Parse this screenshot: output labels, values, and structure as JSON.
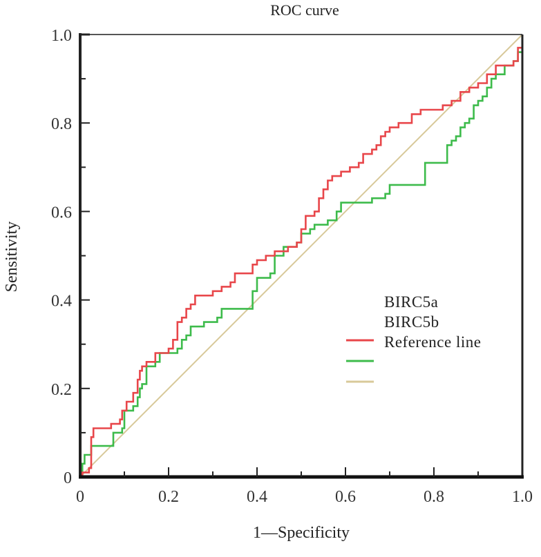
{
  "chart_data": {
    "type": "line",
    "title": "ROC curve",
    "xlabel": "1—Specificity",
    "ylabel": "Sensitivity",
    "xlim": [
      0,
      1
    ],
    "ylim": [
      0,
      1
    ],
    "grid": false,
    "x_ticks": [
      {
        "value": 0,
        "label": "0"
      },
      {
        "value": 0.2,
        "label": "0.2"
      },
      {
        "value": 0.4,
        "label": "0.4"
      },
      {
        "value": 0.6,
        "label": "0.6"
      },
      {
        "value": 0.8,
        "label": "0.8"
      },
      {
        "value": 1.0,
        "label": "1.0"
      }
    ],
    "y_ticks": [
      {
        "value": 0,
        "label": "0"
      },
      {
        "value": 0.2,
        "label": "0.2"
      },
      {
        "value": 0.4,
        "label": "0.4"
      },
      {
        "value": 0.6,
        "label": "0.6"
      },
      {
        "value": 0.8,
        "label": "0.8"
      },
      {
        "value": 1.0,
        "label": "1.0"
      }
    ],
    "minor_ticks": [
      0.1,
      0.3,
      0.5,
      0.7,
      0.9
    ],
    "legend": {
      "placement": "center-right",
      "labels": [
        "BIRC5a",
        "BIRC5b",
        "Reference line"
      ]
    },
    "series": [
      {
        "name": "BIRC5a",
        "color": "#e8464a",
        "step": true,
        "points": [
          [
            0,
            0
          ],
          [
            0.005,
            0.01
          ],
          [
            0.02,
            0.02
          ],
          [
            0.025,
            0.09
          ],
          [
            0.03,
            0.11
          ],
          [
            0.07,
            0.12
          ],
          [
            0.09,
            0.13
          ],
          [
            0.095,
            0.15
          ],
          [
            0.105,
            0.17
          ],
          [
            0.115,
            0.17
          ],
          [
            0.12,
            0.19
          ],
          [
            0.13,
            0.22
          ],
          [
            0.135,
            0.24
          ],
          [
            0.14,
            0.25
          ],
          [
            0.15,
            0.26
          ],
          [
            0.17,
            0.28
          ],
          [
            0.2,
            0.29
          ],
          [
            0.21,
            0.31
          ],
          [
            0.22,
            0.35
          ],
          [
            0.23,
            0.36
          ],
          [
            0.24,
            0.38
          ],
          [
            0.25,
            0.39
          ],
          [
            0.26,
            0.41
          ],
          [
            0.29,
            0.41
          ],
          [
            0.3,
            0.42
          ],
          [
            0.32,
            0.43
          ],
          [
            0.34,
            0.44
          ],
          [
            0.35,
            0.46
          ],
          [
            0.38,
            0.46
          ],
          [
            0.39,
            0.48
          ],
          [
            0.4,
            0.49
          ],
          [
            0.42,
            0.5
          ],
          [
            0.44,
            0.51
          ],
          [
            0.47,
            0.52
          ],
          [
            0.49,
            0.53
          ],
          [
            0.5,
            0.56
          ],
          [
            0.51,
            0.59
          ],
          [
            0.53,
            0.6
          ],
          [
            0.54,
            0.63
          ],
          [
            0.55,
            0.65
          ],
          [
            0.56,
            0.67
          ],
          [
            0.57,
            0.68
          ],
          [
            0.59,
            0.69
          ],
          [
            0.61,
            0.7
          ],
          [
            0.63,
            0.71
          ],
          [
            0.64,
            0.73
          ],
          [
            0.66,
            0.74
          ],
          [
            0.67,
            0.75
          ],
          [
            0.68,
            0.77
          ],
          [
            0.69,
            0.78
          ],
          [
            0.7,
            0.79
          ],
          [
            0.72,
            0.8
          ],
          [
            0.75,
            0.82
          ],
          [
            0.77,
            0.83
          ],
          [
            0.81,
            0.83
          ],
          [
            0.82,
            0.84
          ],
          [
            0.84,
            0.85
          ],
          [
            0.86,
            0.87
          ],
          [
            0.88,
            0.88
          ],
          [
            0.9,
            0.89
          ],
          [
            0.92,
            0.91
          ],
          [
            0.94,
            0.93
          ],
          [
            0.98,
            0.94
          ],
          [
            0.99,
            0.97
          ],
          [
            1.0,
            1.0
          ]
        ]
      },
      {
        "name": "BIRC5b",
        "color": "#3dbb4b",
        "step": true,
        "points": [
          [
            0,
            0
          ],
          [
            0.005,
            0.03
          ],
          [
            0.01,
            0.05
          ],
          [
            0.02,
            0.05
          ],
          [
            0.025,
            0.07
          ],
          [
            0.07,
            0.07
          ],
          [
            0.075,
            0.1
          ],
          [
            0.095,
            0.11
          ],
          [
            0.1,
            0.15
          ],
          [
            0.12,
            0.16
          ],
          [
            0.13,
            0.18
          ],
          [
            0.135,
            0.2
          ],
          [
            0.14,
            0.21
          ],
          [
            0.15,
            0.25
          ],
          [
            0.17,
            0.26
          ],
          [
            0.18,
            0.28
          ],
          [
            0.22,
            0.29
          ],
          [
            0.23,
            0.31
          ],
          [
            0.24,
            0.32
          ],
          [
            0.25,
            0.34
          ],
          [
            0.28,
            0.35
          ],
          [
            0.31,
            0.36
          ],
          [
            0.32,
            0.38
          ],
          [
            0.38,
            0.38
          ],
          [
            0.39,
            0.42
          ],
          [
            0.4,
            0.45
          ],
          [
            0.43,
            0.46
          ],
          [
            0.44,
            0.5
          ],
          [
            0.46,
            0.52
          ],
          [
            0.49,
            0.53
          ],
          [
            0.5,
            0.55
          ],
          [
            0.52,
            0.56
          ],
          [
            0.53,
            0.57
          ],
          [
            0.56,
            0.58
          ],
          [
            0.58,
            0.6
          ],
          [
            0.59,
            0.62
          ],
          [
            0.64,
            0.62
          ],
          [
            0.66,
            0.63
          ],
          [
            0.69,
            0.64
          ],
          [
            0.7,
            0.66
          ],
          [
            0.77,
            0.66
          ],
          [
            0.78,
            0.71
          ],
          [
            0.82,
            0.71
          ],
          [
            0.83,
            0.75
          ],
          [
            0.84,
            0.76
          ],
          [
            0.85,
            0.77
          ],
          [
            0.86,
            0.79
          ],
          [
            0.87,
            0.8
          ],
          [
            0.88,
            0.81
          ],
          [
            0.89,
            0.84
          ],
          [
            0.9,
            0.85
          ],
          [
            0.91,
            0.86
          ],
          [
            0.92,
            0.88
          ],
          [
            0.93,
            0.9
          ],
          [
            0.94,
            0.91
          ],
          [
            0.96,
            0.93
          ],
          [
            0.98,
            0.94
          ],
          [
            0.99,
            0.96
          ],
          [
            1.0,
            1.0
          ]
        ]
      },
      {
        "name": "Reference line",
        "color": "#d8c99a",
        "step": false,
        "points": [
          [
            0,
            0
          ],
          [
            1,
            1
          ]
        ]
      }
    ]
  }
}
